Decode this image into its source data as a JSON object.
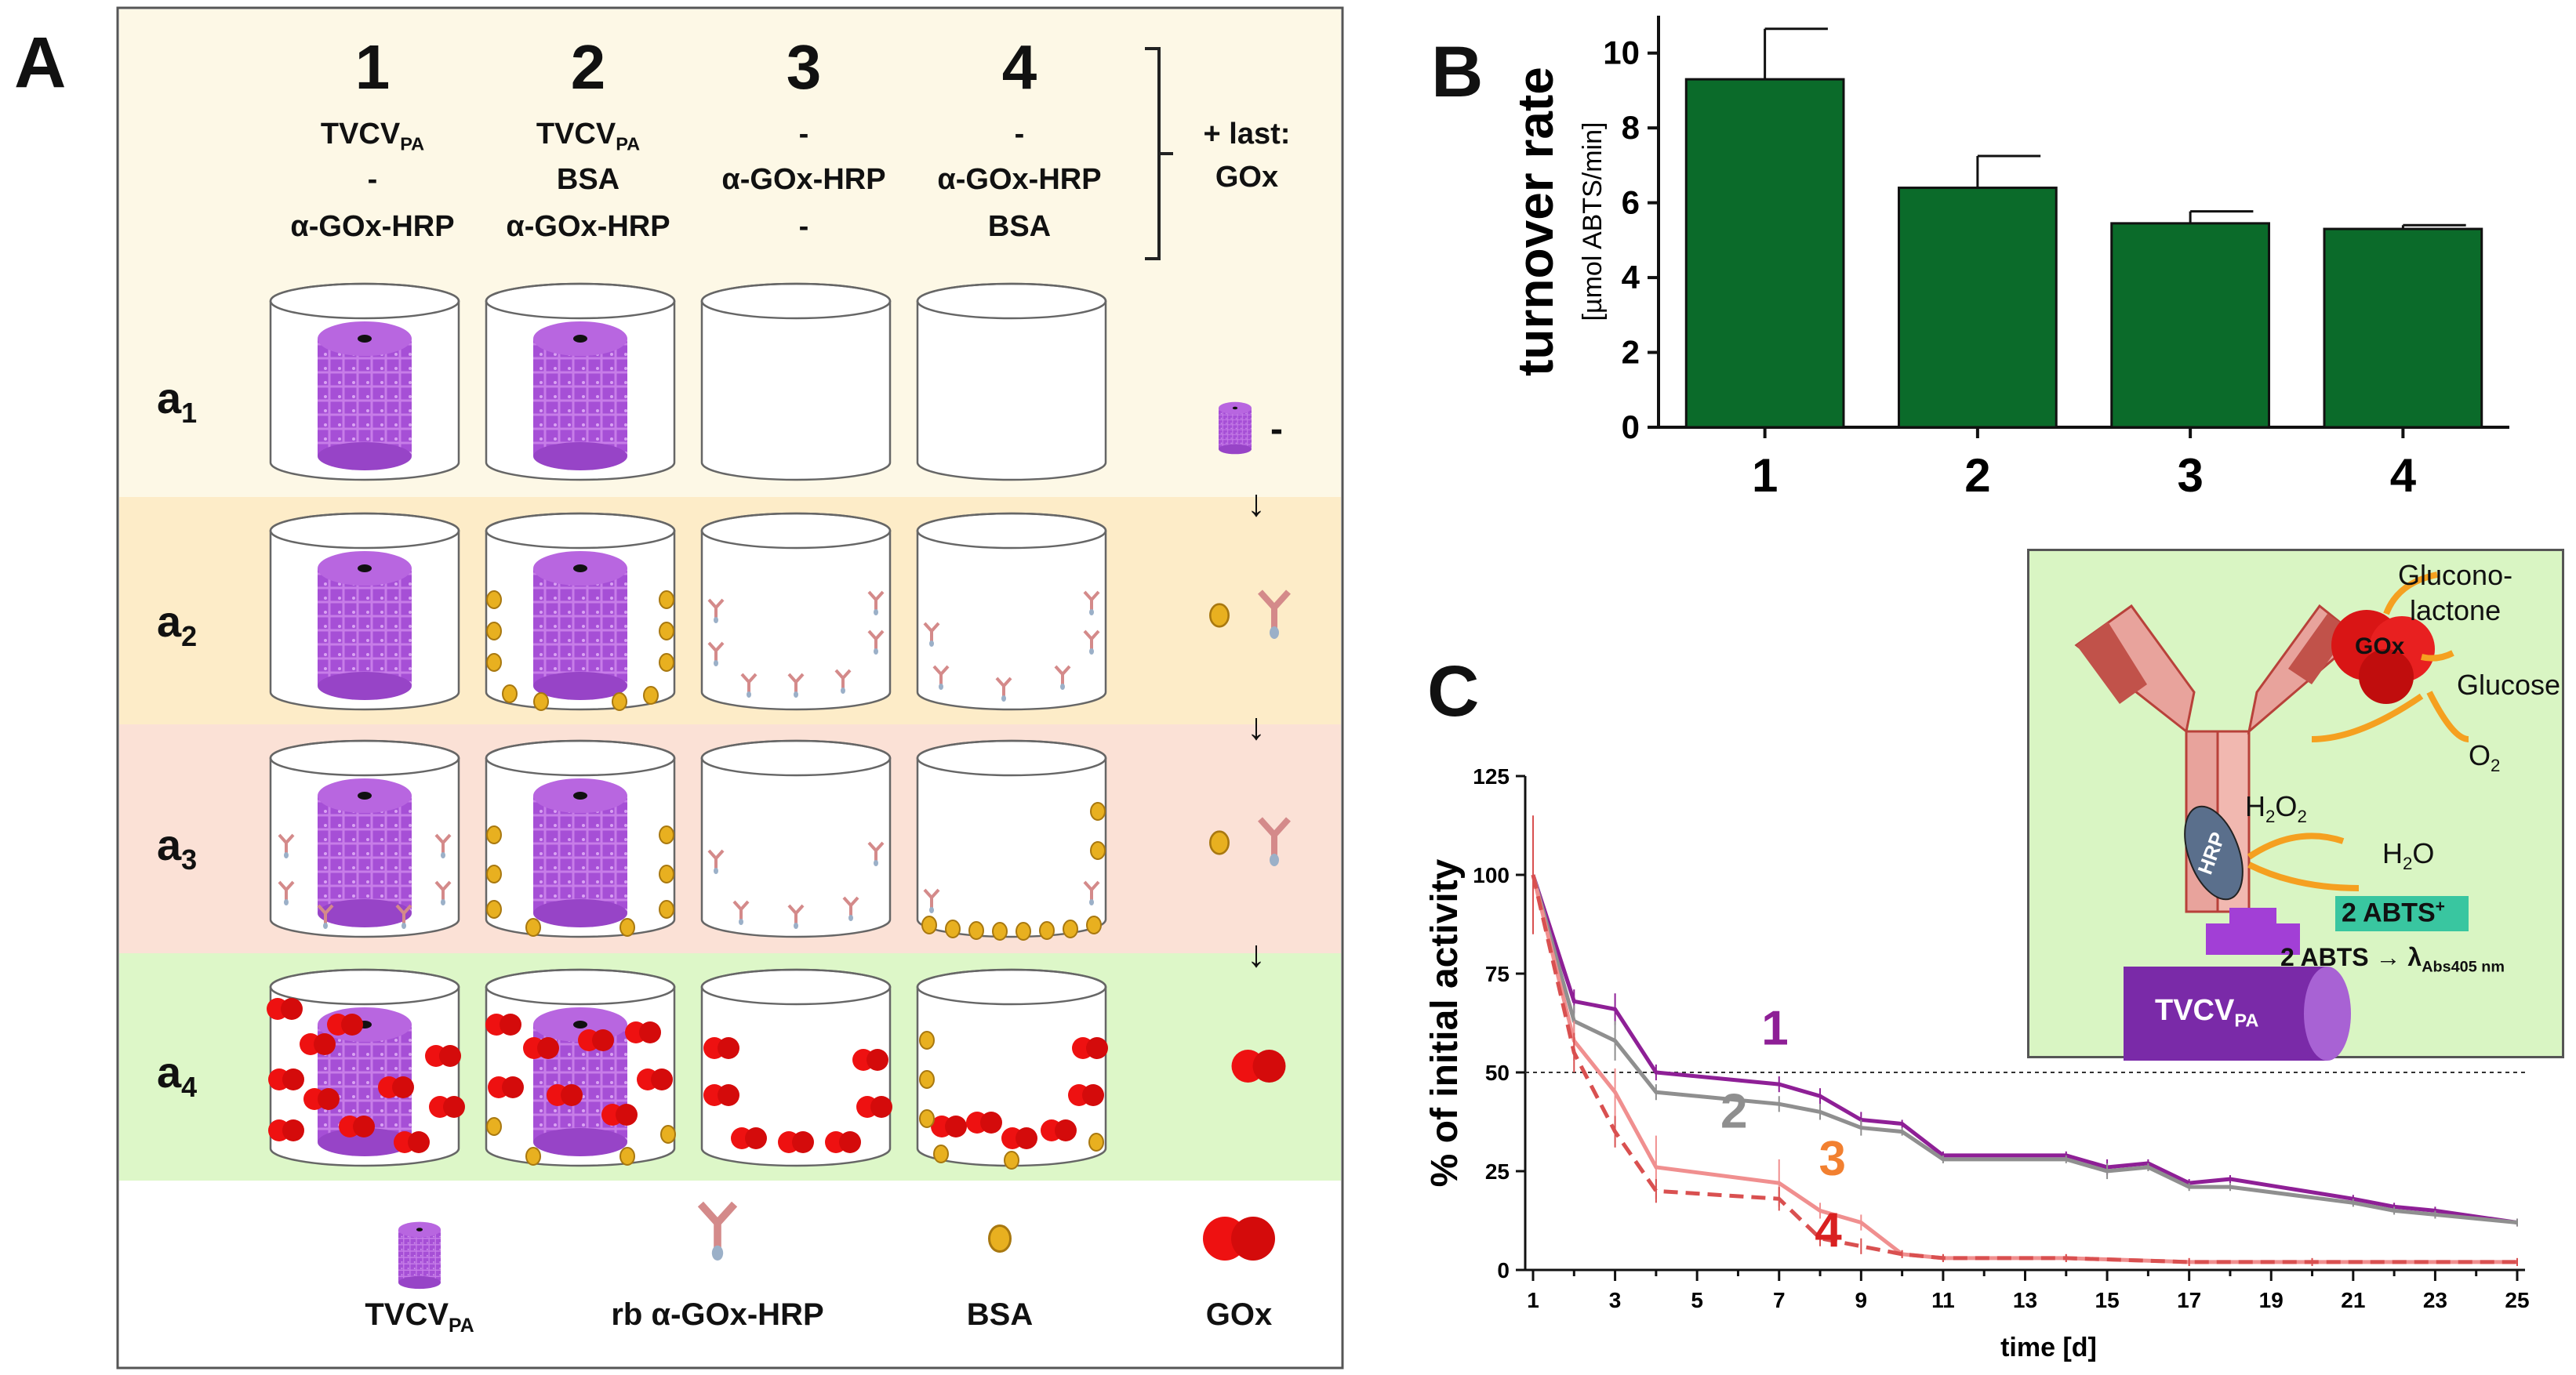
{
  "panel_labels": {
    "a": "A",
    "b": "B",
    "c": "C"
  },
  "panelA": {
    "columns": [
      {
        "num": "1",
        "line1": "TVCV",
        "line1_sub": "PA",
        "line2": "-",
        "line3": "α-GOx-HRP"
      },
      {
        "num": "2",
        "line1": "TVCV",
        "line1_sub": "PA",
        "line2": "BSA",
        "line3": "α-GOx-HRP"
      },
      {
        "num": "3",
        "line1": "-",
        "line1_sub": "",
        "line2": "α-GOx-HRP",
        "line3": "-"
      },
      {
        "num": "4",
        "line1": "-",
        "line1_sub": "",
        "line2": "α-GOx-HRP",
        "line3": "BSA"
      }
    ],
    "last_line1": "+ last:",
    "last_line2": "GOx",
    "rows": [
      {
        "main": "a",
        "sub": "1",
        "step": "-"
      },
      {
        "main": "a",
        "sub": "2",
        "step": ""
      },
      {
        "main": "a",
        "sub": "3",
        "step": ""
      },
      {
        "main": "a",
        "sub": "4",
        "step": ""
      }
    ],
    "arrow": "↓",
    "legend": {
      "tvcv": "TVCV",
      "tvcv_sub": "PA",
      "antibody": "rb α-GOx-HRP",
      "bsa": "BSA",
      "gox": "GOx"
    },
    "colors": {
      "row1": "#fdf8e6",
      "row2": "#fdecc8",
      "row3": "#fbe1d6",
      "row4": "#ddf7c8",
      "virus": "#a64fd6",
      "gox": "#ee1111",
      "bsa": "#e8b020"
    }
  },
  "chart_data": [
    {
      "type": "bar",
      "title": "",
      "ylabel": "turnover rate",
      "ylabel_unit": "[µmol ABTS/min]",
      "categories": [
        "1",
        "2",
        "3",
        "4"
      ],
      "values": [
        9.3,
        6.4,
        5.45,
        5.3
      ],
      "errors": [
        1.35,
        0.85,
        0.32,
        0.1
      ],
      "ylim": [
        0,
        11
      ],
      "yticks": [
        "0",
        "2",
        "4",
        "6",
        "8",
        "10"
      ],
      "color": "#0b6b2a"
    },
    {
      "type": "line",
      "xlabel": "time [d]",
      "ylabel": "% of initial activity",
      "xlim": [
        1,
        25
      ],
      "ylim": [
        0,
        125
      ],
      "xticks": [
        "1",
        "3",
        "5",
        "7",
        "9",
        "11",
        "13",
        "15",
        "17",
        "19",
        "21",
        "23",
        "25"
      ],
      "yticks": [
        "0",
        "25",
        "50",
        "75",
        "100",
        "125"
      ],
      "reference_line": 50,
      "series": [
        {
          "name": "1",
          "color": "#8e1f96",
          "dashed": false,
          "x": [
            1,
            2,
            3,
            4,
            7,
            8,
            9,
            10,
            11,
            14,
            15,
            16,
            17,
            18,
            21,
            22,
            23,
            25
          ],
          "y": [
            100,
            68,
            66,
            50,
            47,
            44,
            38,
            37,
            29,
            29,
            26,
            27,
            22,
            23,
            18,
            16,
            15,
            12
          ],
          "err": [
            12,
            3,
            4,
            2,
            2,
            2,
            2,
            1,
            1,
            1,
            2,
            1,
            1,
            1,
            1,
            1,
            1,
            1
          ]
        },
        {
          "name": "2",
          "color": "#8f8f8f",
          "dashed": false,
          "x": [
            1,
            2,
            3,
            4,
            7,
            8,
            9,
            10,
            11,
            14,
            15,
            16,
            17,
            18,
            21,
            22,
            23,
            25
          ],
          "y": [
            100,
            63,
            58,
            45,
            42,
            40,
            36,
            35,
            28,
            28,
            25,
            26,
            21,
            21,
            17,
            15,
            14,
            12
          ],
          "err": [
            15,
            4,
            5,
            2,
            2,
            2,
            2,
            1,
            1,
            1,
            2,
            1,
            1,
            1,
            1,
            1,
            1,
            1
          ]
        },
        {
          "name": "3",
          "color": "#f08f8f",
          "dashed": false,
          "x": [
            1,
            2,
            3,
            4,
            7,
            8,
            9,
            10,
            11,
            14,
            17,
            20,
            25
          ],
          "y": [
            100,
            58,
            45,
            26,
            22,
            15,
            12,
            4,
            3,
            3,
            2,
            2,
            2
          ],
          "err": [
            15,
            5,
            6,
            8,
            6,
            2,
            2,
            1,
            1,
            1,
            1,
            1,
            1
          ]
        },
        {
          "name": "4",
          "color": "#d95050",
          "dashed": true,
          "x": [
            1,
            2,
            3,
            4,
            7,
            8,
            9,
            10,
            11,
            14,
            17,
            20,
            25
          ],
          "y": [
            100,
            55,
            35,
            20,
            18,
            8,
            6,
            4,
            3,
            3,
            2,
            2,
            2
          ],
          "err": [
            15,
            5,
            4,
            3,
            3,
            2,
            2,
            1,
            1,
            1,
            1,
            1,
            1
          ]
        }
      ],
      "series_label_colors": {
        "1": "#8e1f96",
        "2": "#8f8f8f",
        "3": "#f28030",
        "4": "#d92020"
      }
    }
  ],
  "inset": {
    "gluconolactone_1": "Glucono-",
    "gluconolactone_2": "lactone",
    "glucose": "Glucose",
    "o2": "O",
    "o2_sub": "2",
    "h2o2_a": "H",
    "h2o2_sub1": "2",
    "h2o2_b": "O",
    "h2o2_sub2": "2",
    "h2o": "H",
    "h2o_sub": "2",
    "h2o_b": "O",
    "abts_plus": "2 ABTS",
    "abts_plus_sup": "+",
    "abts_line": "2 ABTS → λ",
    "abts_line_sub": "Abs405 nm",
    "gox": "GOx",
    "hrp": "HRP",
    "tvcv": "TVCV",
    "tvcv_sub": "PA",
    "colors": {
      "bg": "#d9f5c3",
      "antibody": "#e8a39c",
      "antibody_dark": "#b8413a",
      "gox": "#d91515",
      "virus": "#7a2aa8",
      "arrow": "#f5a020",
      "abts_bg": "#39c6a0"
    }
  }
}
